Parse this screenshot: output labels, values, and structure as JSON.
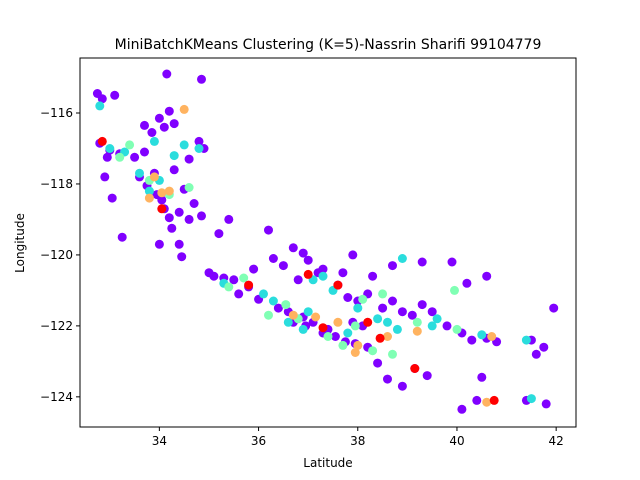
{
  "chart_data": {
    "type": "scatter",
    "title": "MiniBatchKMeans Clustering (K=5)-Nassrin Sharifi 99104779",
    "xlabel": "Latitude",
    "ylabel": "Longitude",
    "xlim": [
      32.4,
      42.4
    ],
    "ylim": [
      -124.85,
      -114.45
    ],
    "xticks": [
      34,
      36,
      38,
      40,
      42
    ],
    "yticks": [
      -116,
      -118,
      -120,
      -122,
      -124
    ],
    "xtick_labels": [
      "34",
      "36",
      "38",
      "40",
      "42"
    ],
    "ytick_labels": [
      "−116",
      "−118",
      "−120",
      "−122",
      "−124"
    ],
    "legend": "none",
    "grid": false,
    "series": [
      {
        "color": "#8000ff",
        "points": [
          [
            32.75,
            -115.45
          ],
          [
            32.85,
            -115.6
          ],
          [
            33.1,
            -115.5
          ],
          [
            32.8,
            -116.85
          ],
          [
            33.0,
            -117.05
          ],
          [
            33.2,
            -117.15
          ],
          [
            32.95,
            -117.25
          ],
          [
            32.9,
            -117.8
          ],
          [
            33.05,
            -118.4
          ],
          [
            33.25,
            -119.5
          ],
          [
            33.5,
            -117.25
          ],
          [
            33.7,
            -117.1
          ],
          [
            33.7,
            -116.35
          ],
          [
            33.85,
            -116.55
          ],
          [
            34.0,
            -116.15
          ],
          [
            34.1,
            -116.4
          ],
          [
            34.2,
            -115.95
          ],
          [
            34.15,
            -114.9
          ],
          [
            34.85,
            -115.05
          ],
          [
            34.3,
            -116.3
          ],
          [
            33.6,
            -117.8
          ],
          [
            33.75,
            -118.05
          ],
          [
            33.95,
            -118.3
          ],
          [
            34.05,
            -118.45
          ],
          [
            34.1,
            -118.7
          ],
          [
            34.2,
            -118.95
          ],
          [
            34.25,
            -119.25
          ],
          [
            34.4,
            -119.7
          ],
          [
            34.45,
            -120.05
          ],
          [
            34.0,
            -119.7
          ],
          [
            34.5,
            -118.15
          ],
          [
            34.7,
            -118.55
          ],
          [
            34.85,
            -118.9
          ],
          [
            34.6,
            -117.3
          ],
          [
            34.9,
            -117.0
          ],
          [
            34.8,
            -116.8
          ],
          [
            34.3,
            -117.6
          ],
          [
            33.9,
            -117.7
          ],
          [
            34.4,
            -118.8
          ],
          [
            34.6,
            -119.0
          ],
          [
            35.0,
            -120.5
          ],
          [
            35.3,
            -120.65
          ],
          [
            35.5,
            -120.7
          ],
          [
            35.8,
            -120.9
          ],
          [
            36.0,
            -121.25
          ],
          [
            35.6,
            -121.1
          ],
          [
            35.9,
            -120.4
          ],
          [
            36.3,
            -120.1
          ],
          [
            36.7,
            -119.8
          ],
          [
            36.9,
            -119.95
          ],
          [
            37.0,
            -120.15
          ],
          [
            37.3,
            -120.4
          ],
          [
            37.6,
            -120.85
          ],
          [
            37.8,
            -121.2
          ],
          [
            38.0,
            -121.3
          ],
          [
            38.2,
            -121.1
          ],
          [
            38.5,
            -121.5
          ],
          [
            38.7,
            -121.3
          ],
          [
            38.9,
            -121.6
          ],
          [
            39.1,
            -121.7
          ],
          [
            39.3,
            -121.4
          ],
          [
            39.5,
            -121.6
          ],
          [
            39.8,
            -122.0
          ],
          [
            40.1,
            -122.2
          ],
          [
            40.3,
            -122.4
          ],
          [
            40.6,
            -122.35
          ],
          [
            40.8,
            -122.45
          ],
          [
            40.5,
            -123.45
          ],
          [
            40.4,
            -124.1
          ],
          [
            40.1,
            -124.35
          ],
          [
            39.4,
            -123.4
          ],
          [
            39.15,
            -123.2
          ],
          [
            38.9,
            -123.7
          ],
          [
            38.6,
            -123.5
          ],
          [
            38.4,
            -123.05
          ],
          [
            38.2,
            -122.6
          ],
          [
            37.95,
            -122.5
          ],
          [
            37.75,
            -122.45
          ],
          [
            37.55,
            -122.3
          ],
          [
            37.4,
            -122.1
          ],
          [
            37.1,
            -121.9
          ],
          [
            36.9,
            -121.75
          ],
          [
            36.6,
            -121.6
          ],
          [
            36.4,
            -121.5
          ],
          [
            37.2,
            -120.5
          ],
          [
            36.5,
            -120.3
          ],
          [
            35.4,
            -119.0
          ],
          [
            35.2,
            -119.4
          ],
          [
            36.2,
            -119.3
          ],
          [
            36.8,
            -120.7
          ],
          [
            41.5,
            -122.4
          ],
          [
            41.75,
            -122.6
          ],
          [
            41.95,
            -121.5
          ],
          [
            41.6,
            -122.8
          ],
          [
            41.4,
            -124.1
          ],
          [
            41.8,
            -124.2
          ],
          [
            40.6,
            -120.6
          ],
          [
            40.2,
            -120.8
          ],
          [
            39.9,
            -120.2
          ],
          [
            39.3,
            -120.2
          ],
          [
            38.7,
            -120.3
          ],
          [
            38.3,
            -120.6
          ],
          [
            37.9,
            -120.0
          ],
          [
            37.7,
            -120.5
          ],
          [
            38.1,
            -122.0
          ],
          [
            37.3,
            -122.2
          ],
          [
            36.95,
            -122.0
          ],
          [
            36.7,
            -121.9
          ],
          [
            35.1,
            -120.6
          ],
          [
            37.9,
            -121.9
          ]
        ]
      },
      {
        "color": "#2adddd",
        "points": [
          [
            32.8,
            -115.8
          ],
          [
            33.0,
            -117.0
          ],
          [
            33.3,
            -117.1
          ],
          [
            33.6,
            -117.7
          ],
          [
            33.8,
            -118.2
          ],
          [
            34.0,
            -117.9
          ],
          [
            34.3,
            -117.2
          ],
          [
            34.5,
            -116.9
          ],
          [
            34.8,
            -117.0
          ],
          [
            33.9,
            -116.8
          ],
          [
            35.3,
            -120.8
          ],
          [
            36.1,
            -121.1
          ],
          [
            36.6,
            -121.9
          ],
          [
            37.1,
            -120.7
          ],
          [
            37.5,
            -121.0
          ],
          [
            38.0,
            -121.5
          ],
          [
            38.4,
            -121.8
          ],
          [
            38.8,
            -122.1
          ],
          [
            39.5,
            -122.0
          ],
          [
            40.5,
            -122.25
          ],
          [
            41.4,
            -122.4
          ],
          [
            41.5,
            -124.05
          ],
          [
            37.8,
            -122.2
          ],
          [
            36.9,
            -122.1
          ],
          [
            38.9,
            -120.1
          ],
          [
            39.6,
            -121.8
          ],
          [
            37.3,
            -120.6
          ],
          [
            36.3,
            -121.3
          ],
          [
            38.6,
            -121.9
          ],
          [
            37.0,
            -121.6
          ]
        ]
      },
      {
        "color": "#80ffb4",
        "points": [
          [
            33.2,
            -117.25
          ],
          [
            33.4,
            -116.9
          ],
          [
            33.8,
            -117.9
          ],
          [
            34.2,
            -118.3
          ],
          [
            35.4,
            -120.9
          ],
          [
            36.2,
            -121.7
          ],
          [
            36.8,
            -121.8
          ],
          [
            37.4,
            -122.3
          ],
          [
            37.95,
            -122.0
          ],
          [
            38.3,
            -122.7
          ],
          [
            38.7,
            -122.8
          ],
          [
            39.2,
            -121.9
          ],
          [
            39.95,
            -121.0
          ],
          [
            40.0,
            -122.1
          ],
          [
            36.55,
            -121.4
          ],
          [
            37.7,
            -122.55
          ],
          [
            35.7,
            -120.65
          ],
          [
            38.1,
            -121.25
          ],
          [
            38.5,
            -121.1
          ],
          [
            34.6,
            -118.1
          ]
        ]
      },
      {
        "color": "#ffb360",
        "points": [
          [
            34.5,
            -115.9
          ],
          [
            33.8,
            -118.4
          ],
          [
            33.9,
            -117.8
          ],
          [
            34.2,
            -118.2
          ],
          [
            36.7,
            -121.7
          ],
          [
            37.6,
            -121.9
          ],
          [
            38.0,
            -122.55
          ],
          [
            38.6,
            -122.3
          ],
          [
            39.2,
            -122.15
          ],
          [
            40.7,
            -122.3
          ],
          [
            40.6,
            -124.15
          ],
          [
            37.15,
            -121.75
          ],
          [
            37.95,
            -122.75
          ],
          [
            34.05,
            -118.25
          ]
        ]
      },
      {
        "color": "#ff0000",
        "points": [
          [
            32.85,
            -116.8
          ],
          [
            34.05,
            -118.7
          ],
          [
            35.8,
            -120.85
          ],
          [
            37.0,
            -120.55
          ],
          [
            37.6,
            -120.85
          ],
          [
            38.45,
            -122.35
          ],
          [
            39.15,
            -123.2
          ],
          [
            40.75,
            -124.1
          ],
          [
            38.2,
            -121.9
          ],
          [
            37.3,
            -122.05
          ]
        ]
      }
    ]
  }
}
